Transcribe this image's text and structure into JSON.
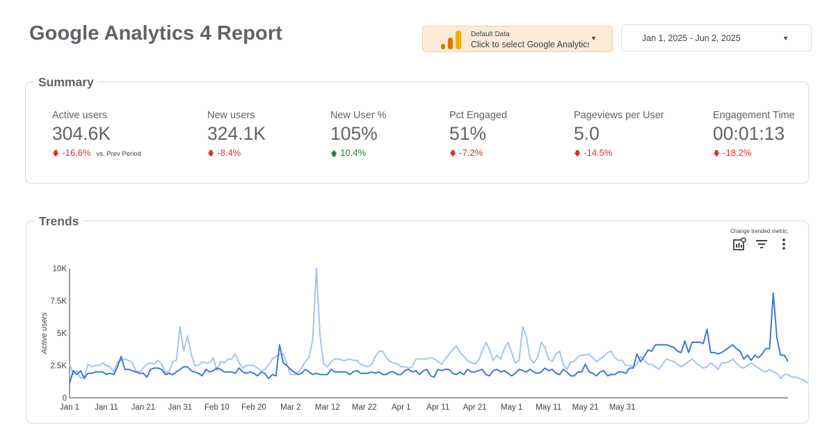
{
  "header": {
    "title": "Google Analytics 4 Report",
    "data_source": {
      "label": "Default Data",
      "value": "Click to select Google Analytics",
      "icon": "analytics-bars-icon"
    },
    "date_range": {
      "value": "Jan 1, 2025 - Jun 2, 2025"
    }
  },
  "summary": {
    "title": "Summary",
    "comparison_label": "vs. Prev Period",
    "metrics": [
      {
        "label": "Active users",
        "value": "304.6K",
        "delta": "-16.6%",
        "direction": "down"
      },
      {
        "label": "New users",
        "value": "324.1K",
        "delta": "-8.4%",
        "direction": "down"
      },
      {
        "label": "New User %",
        "value": "105%",
        "delta": "10.4%",
        "direction": "up"
      },
      {
        "label": "Pct Engaged",
        "value": "51%",
        "delta": "-7.2%",
        "direction": "down"
      },
      {
        "label": "Pageviews per User",
        "value": "5.0",
        "delta": "-14.5%",
        "direction": "down"
      },
      {
        "label": "Engagement Time",
        "value": "00:01:13",
        "delta": "-18.2%",
        "direction": "down"
      }
    ]
  },
  "trends": {
    "title": "Trends",
    "control_hint": "Change trended metric:",
    "tools": [
      "chart-settings-icon",
      "filter-icon",
      "more-vert-icon"
    ]
  },
  "colors": {
    "current": "#3c78d8",
    "previous": "#a4c2f4",
    "negative": "#d93025",
    "positive": "#188038"
  },
  "chart_data": {
    "type": "line",
    "ylabel": "Active users",
    "ylim": [
      0,
      10000
    ],
    "y_ticks": [
      "0",
      "2.5K",
      "5K",
      "7.5K",
      "10K"
    ],
    "x_ticks": [
      "Jan 1",
      "Jan 11",
      "Jan 21",
      "Jan 31",
      "Feb 10",
      "Feb 20",
      "Mar 2",
      "Mar 12",
      "Mar 22",
      "Apr 1",
      "Apr 11",
      "Apr 21",
      "May 1",
      "May 11",
      "May 21",
      "May 31"
    ],
    "series": [
      {
        "values": [
          1100,
          2100,
          1800,
          2100,
          1500,
          1900,
          1900,
          2000,
          2000,
          2000,
          1800,
          1900,
          1800,
          2400,
          3200,
          2200,
          2200,
          2100,
          2000,
          1900,
          1900,
          1600,
          2200,
          2300,
          2300,
          2200,
          1800,
          1900,
          1800,
          2000,
          2200,
          2400,
          2400,
          2100,
          2000,
          1900,
          1700,
          2200,
          2000,
          2100,
          2300,
          2200,
          2000,
          2000,
          2000,
          1900,
          2300,
          2000,
          1900,
          2000,
          1900,
          1700,
          2000,
          1900,
          1500,
          1800,
          1700,
          4100,
          2700,
          2500,
          2200,
          2000,
          1800,
          1900,
          2200,
          2000,
          1800,
          1900,
          1800,
          1800,
          1800,
          2200,
          2000,
          2000,
          2000,
          2000,
          1800,
          2000,
          2100,
          1900,
          1900,
          1900,
          2000,
          1900,
          2000,
          1800,
          1800,
          2000,
          2000,
          1800,
          1800,
          2100,
          2200,
          2000,
          2100,
          1800,
          2100,
          2200,
          1700,
          1600,
          2200,
          2100,
          2200,
          2200,
          1900,
          1800,
          2000,
          1800,
          2200,
          2000,
          2000,
          2100,
          2200,
          1800,
          1700,
          2100,
          2200,
          2000,
          2100,
          1900,
          1700,
          1900,
          2200,
          2100,
          2000,
          2200,
          2000,
          1900,
          2000,
          2300,
          2100,
          2200,
          1900,
          1800,
          2200,
          2000,
          1700,
          1700,
          2000,
          2000,
          2600,
          2000,
          1900,
          1700,
          2000,
          2100,
          1700,
          1800,
          1800,
          2000,
          2000,
          1900,
          2300,
          2300,
          3400,
          2800,
          3200,
          3700,
          3600,
          4100,
          4100,
          4100,
          4100,
          4000,
          3900,
          3600,
          3500,
          4400,
          3500,
          4300,
          4300,
          4300,
          4200,
          5300,
          3500,
          3500,
          3400,
          3500,
          3700,
          3900,
          4100,
          3800,
          3600,
          3000,
          3300,
          2900,
          3300,
          3100,
          3400,
          3800,
          3800,
          8100,
          4600,
          3300,
          3300,
          2800
        ]
      },
      {
        "values": [
          2600,
          1800,
          2100,
          1500,
          1600,
          2600,
          2400,
          2500,
          2500,
          2700,
          2500,
          2400,
          2000,
          2800,
          2900,
          3000,
          2900,
          2700,
          2100,
          2000,
          2300,
          2600,
          2700,
          2600,
          2900,
          2600,
          2000,
          2000,
          2800,
          2900,
          5500,
          3600,
          4800,
          3400,
          2500,
          2500,
          2800,
          2700,
          2700,
          3100,
          2100,
          2800,
          2700,
          3000,
          3000,
          3400,
          2700,
          2300,
          2500,
          2500,
          2500,
          2300,
          2100,
          2200,
          2500,
          3000,
          3200,
          3400,
          3400,
          2600,
          1800,
          1800,
          2000,
          2300,
          2800,
          3100,
          4500,
          10000,
          4800,
          2600,
          2400,
          2800,
          3000,
          3000,
          2900,
          2900,
          3000,
          2900,
          2900,
          2600,
          2500,
          2400,
          2600,
          3200,
          3600,
          3600,
          3100,
          2800,
          2700,
          2600,
          2400,
          2400,
          2300,
          2400,
          3000,
          3000,
          3000,
          3000,
          3100,
          3000,
          2800,
          2600,
          3000,
          3400,
          3700,
          4000,
          3500,
          3200,
          2900,
          2700,
          2600,
          2900,
          3600,
          4300,
          3700,
          2900,
          3300,
          3000,
          3800,
          4300,
          3500,
          2700,
          2900,
          5500,
          4700,
          3000,
          2700,
          3100,
          4300,
          3900,
          3000,
          2800,
          3400,
          3600,
          2600,
          2200,
          2800,
          2800,
          3200,
          3300,
          3300,
          3400,
          3100,
          2800,
          3000,
          3200,
          3500,
          3600,
          3100,
          2900,
          2900,
          2500,
          2500,
          2400,
          2600,
          3200,
          2900,
          2600,
          2600,
          2400,
          2200,
          2600,
          3000,
          2900,
          2800,
          2600,
          2400,
          2600,
          2800,
          3000,
          2700,
          2500,
          2300,
          2400,
          2700,
          2500,
          2200,
          2700,
          2700,
          2800,
          3000,
          2700,
          2400,
          2300,
          2500,
          2700,
          2500,
          2300,
          2100,
          2000,
          2200,
          2000,
          1900,
          1500,
          1800,
          1800,
          1600,
          1600,
          1500,
          1400,
          1200,
          1100,
          1000
        ]
      }
    ]
  }
}
